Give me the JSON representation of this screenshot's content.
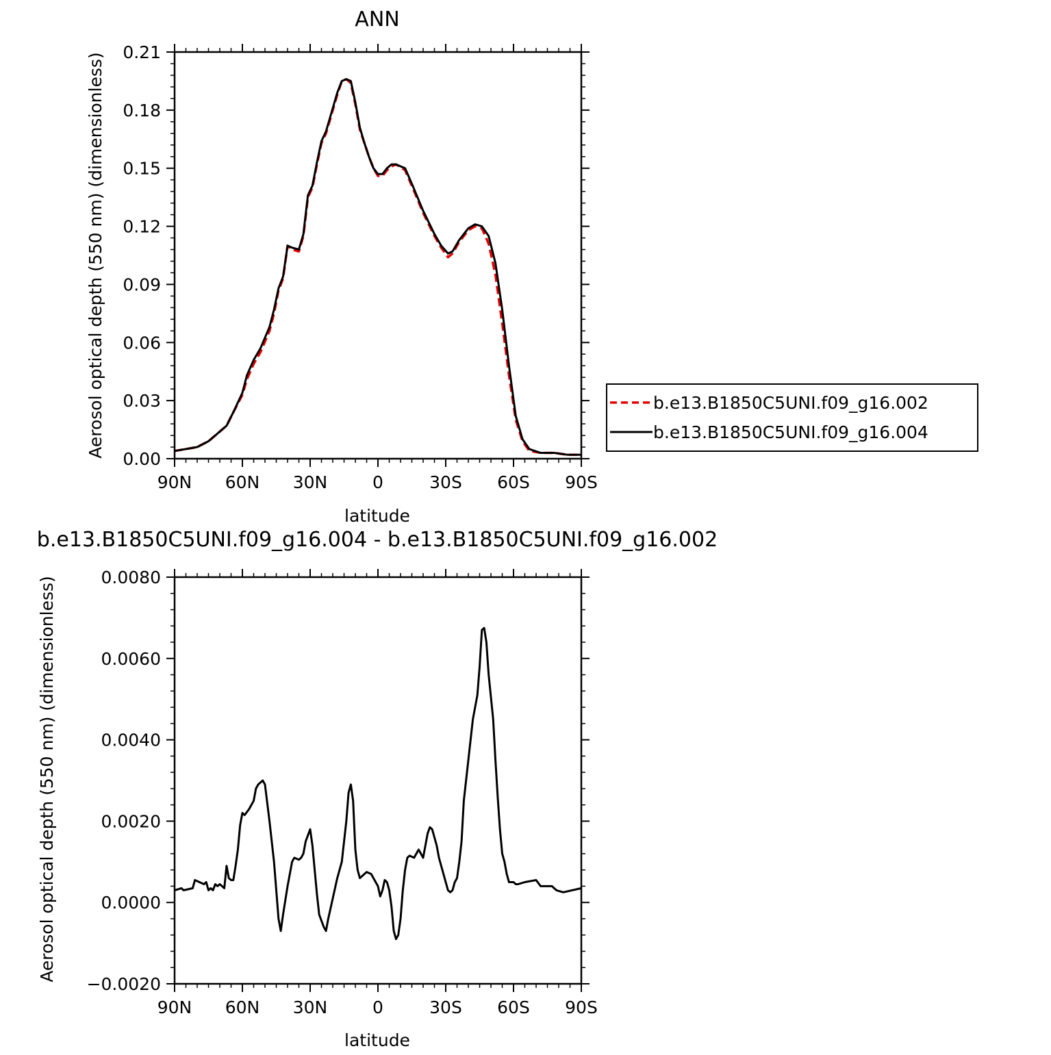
{
  "chart_data": [
    {
      "type": "line",
      "title": "ANN",
      "xlabel": "latitude",
      "ylabel": "Aerosol optical depth (550 nm) (dimensionless)",
      "xlim": [
        90,
        -90
      ],
      "ylim": [
        0,
        0.21
      ],
      "x_tick_values": [
        90,
        60,
        30,
        0,
        -30,
        -60,
        -90
      ],
      "x_tick_labels": [
        "90N",
        "60N",
        "30N",
        "0",
        "30S",
        "60S",
        "90S"
      ],
      "y_tick_values": [
        0,
        0.03,
        0.06,
        0.09,
        0.12,
        0.15,
        0.18,
        0.21
      ],
      "y_tick_labels": [
        "0.00",
        "0.03",
        "0.06",
        "0.09",
        "0.12",
        "0.15",
        "0.18",
        "0.21"
      ],
      "grid": false,
      "legend_position": "right",
      "series": [
        {
          "name": "b.e13.B1850C5UNI.f09_g16.002",
          "color": "#e60000",
          "dashed": true,
          "points": [
            [
              90,
              0.004
            ],
            [
              85,
              0.005
            ],
            [
              80,
              0.006
            ],
            [
              75,
              0.009
            ],
            [
              70,
              0.014
            ],
            [
              67,
              0.017
            ],
            [
              64,
              0.024
            ],
            [
              60,
              0.033
            ],
            [
              58,
              0.041
            ],
            [
              55,
              0.049
            ],
            [
              52,
              0.055
            ],
            [
              48,
              0.066
            ],
            [
              46,
              0.075
            ],
            [
              44,
              0.087
            ],
            [
              42,
              0.093
            ],
            [
              40,
              0.11
            ],
            [
              38,
              0.108
            ],
            [
              35,
              0.107
            ],
            [
              33,
              0.115
            ],
            [
              31,
              0.135
            ],
            [
              29,
              0.14
            ],
            [
              27,
              0.152
            ],
            [
              25,
              0.163
            ],
            [
              23,
              0.168
            ],
            [
              20,
              0.18
            ],
            [
              18,
              0.188
            ],
            [
              16,
              0.195
            ],
            [
              14,
              0.196
            ],
            [
              12,
              0.194
            ],
            [
              10,
              0.183
            ],
            [
              8,
              0.17
            ],
            [
              6,
              0.163
            ],
            [
              4,
              0.156
            ],
            [
              2,
              0.15
            ],
            [
              0,
              0.146
            ],
            [
              -2,
              0.146
            ],
            [
              -4,
              0.149
            ],
            [
              -6,
              0.151
            ],
            [
              -8,
              0.152
            ],
            [
              -12,
              0.149
            ],
            [
              -15,
              0.141
            ],
            [
              -20,
              0.127
            ],
            [
              -25,
              0.115
            ],
            [
              -28,
              0.109
            ],
            [
              -31,
              0.104
            ],
            [
              -33,
              0.106
            ],
            [
              -36,
              0.112
            ],
            [
              -40,
              0.118
            ],
            [
              -43,
              0.12
            ],
            [
              -46,
              0.119
            ],
            [
              -49,
              0.111
            ],
            [
              -52,
              0.095
            ],
            [
              -55,
              0.07
            ],
            [
              -58,
              0.043
            ],
            [
              -61,
              0.02
            ],
            [
              -64,
              0.009
            ],
            [
              -67,
              0.004
            ],
            [
              -72,
              0.003
            ],
            [
              -78,
              0.003
            ],
            [
              -84,
              0.002
            ],
            [
              -90,
              0.002
            ]
          ]
        },
        {
          "name": "b.e13.B1850C5UNI.f09_g16.004",
          "color": "#000000",
          "dashed": false,
          "points": [
            [
              90,
              0.004
            ],
            [
              85,
              0.005
            ],
            [
              80,
              0.006
            ],
            [
              75,
              0.009
            ],
            [
              70,
              0.014
            ],
            [
              67,
              0.017
            ],
            [
              64,
              0.024
            ],
            [
              60,
              0.034
            ],
            [
              58,
              0.043
            ],
            [
              55,
              0.051
            ],
            [
              52,
              0.057
            ],
            [
              48,
              0.068
            ],
            [
              46,
              0.077
            ],
            [
              44,
              0.088
            ],
            [
              42,
              0.094
            ],
            [
              40,
              0.11
            ],
            [
              38,
              0.109
            ],
            [
              35,
              0.108
            ],
            [
              33,
              0.116
            ],
            [
              31,
              0.136
            ],
            [
              29,
              0.141
            ],
            [
              27,
              0.153
            ],
            [
              25,
              0.164
            ],
            [
              23,
              0.169
            ],
            [
              20,
              0.181
            ],
            [
              18,
              0.189
            ],
            [
              16,
              0.195
            ],
            [
              14,
              0.196
            ],
            [
              12,
              0.195
            ],
            [
              10,
              0.184
            ],
            [
              8,
              0.171
            ],
            [
              6,
              0.163
            ],
            [
              4,
              0.156
            ],
            [
              2,
              0.15
            ],
            [
              0,
              0.147
            ],
            [
              -2,
              0.147
            ],
            [
              -4,
              0.15
            ],
            [
              -6,
              0.152
            ],
            [
              -8,
              0.152
            ],
            [
              -12,
              0.15
            ],
            [
              -15,
              0.142
            ],
            [
              -20,
              0.128
            ],
            [
              -25,
              0.116
            ],
            [
              -28,
              0.11
            ],
            [
              -31,
              0.106
            ],
            [
              -33,
              0.107
            ],
            [
              -36,
              0.113
            ],
            [
              -40,
              0.119
            ],
            [
              -43,
              0.121
            ],
            [
              -46,
              0.12
            ],
            [
              -49,
              0.115
            ],
            [
              -52,
              0.101
            ],
            [
              -55,
              0.077
            ],
            [
              -58,
              0.048
            ],
            [
              -61,
              0.022
            ],
            [
              -64,
              0.01
            ],
            [
              -67,
              0.005
            ],
            [
              -72,
              0.003
            ],
            [
              -78,
              0.003
            ],
            [
              -84,
              0.002
            ],
            [
              -90,
              0.002
            ]
          ]
        }
      ]
    },
    {
      "type": "line",
      "title": "b.e13.B1850C5UNI.f09_g16.004 - b.e13.B1850C5UNI.f09_g16.002",
      "xlabel": "latitude",
      "ylabel": "Aerosol optical depth (550 nm) (dimensionless)",
      "xlim": [
        90,
        -90
      ],
      "ylim": [
        -0.002,
        0.008
      ],
      "x_tick_values": [
        90,
        60,
        30,
        0,
        -30,
        -60,
        -90
      ],
      "x_tick_labels": [
        "90N",
        "60N",
        "30N",
        "0",
        "30S",
        "60S",
        "90S"
      ],
      "y_tick_values": [
        -0.002,
        0,
        0.002,
        0.004,
        0.006,
        0.008
      ],
      "y_tick_labels": [
        "−0.0020",
        "0.0000",
        "0.0020",
        "0.0040",
        "0.0060",
        "0.0080"
      ],
      "grid": false,
      "series": [
        {
          "color": "#000000",
          "dashed": false,
          "points": [
            [
              90,
              0.0003
            ],
            [
              87,
              0.00035
            ],
            [
              86,
              0.0003
            ],
            [
              82,
              0.00035
            ],
            [
              81,
              0.00055
            ],
            [
              79,
              0.0005
            ],
            [
              77,
              0.00045
            ],
            [
              76,
              0.0005
            ],
            [
              75,
              0.0003
            ],
            [
              74,
              0.00035
            ],
            [
              73,
              0.0003
            ],
            [
              72,
              0.00045
            ],
            [
              71,
              0.0004
            ],
            [
              70,
              0.00045
            ],
            [
              69,
              0.0004
            ],
            [
              68,
              0.00035
            ],
            [
              67,
              0.0009
            ],
            [
              66,
              0.0006
            ],
            [
              65,
              0.00055
            ],
            [
              64,
              0.00055
            ],
            [
              63,
              0.0009
            ],
            [
              62,
              0.0013
            ],
            [
              61,
              0.0019
            ],
            [
              60,
              0.0022
            ],
            [
              59,
              0.00215
            ],
            [
              57,
              0.0023
            ],
            [
              56,
              0.0024
            ],
            [
              55,
              0.0025
            ],
            [
              54,
              0.0028
            ],
            [
              53,
              0.0029
            ],
            [
              52,
              0.00295
            ],
            [
              51,
              0.003
            ],
            [
              50,
              0.0029
            ],
            [
              48,
              0.002
            ],
            [
              46,
              0.001
            ],
            [
              44,
              -0.0004
            ],
            [
              43,
              -0.0007
            ],
            [
              42,
              -0.0003
            ],
            [
              40,
              0.0004
            ],
            [
              38,
              0.001
            ],
            [
              37,
              0.0011
            ],
            [
              35,
              0.00105
            ],
            [
              34,
              0.0011
            ],
            [
              33,
              0.0012
            ],
            [
              32,
              0.0015
            ],
            [
              30,
              0.0018
            ],
            [
              29,
              0.0014
            ],
            [
              27,
              0.0002
            ],
            [
              26,
              -0.0003
            ],
            [
              24,
              -0.0006
            ],
            [
              23,
              -0.0007
            ],
            [
              22,
              -0.0004
            ],
            [
              20,
              0.0001
            ],
            [
              18,
              0.0006
            ],
            [
              16,
              0.001
            ],
            [
              14,
              0.002
            ],
            [
              13,
              0.0027
            ],
            [
              12,
              0.0029
            ],
            [
              11,
              0.0025
            ],
            [
              10,
              0.0013
            ],
            [
              9,
              0.0008
            ],
            [
              8,
              0.0006
            ],
            [
              6,
              0.0007
            ],
            [
              5,
              0.00075
            ],
            [
              3,
              0.0007
            ],
            [
              1,
              0.0005
            ],
            [
              0,
              0.0004
            ],
            [
              -1,
              0.00015
            ],
            [
              -2,
              0.0003
            ],
            [
              -3,
              0.00055
            ],
            [
              -4,
              0.0005
            ],
            [
              -5,
              0.0003
            ],
            [
              -6,
              -0.0001
            ],
            [
              -7,
              -0.0007
            ],
            [
              -8,
              -0.0009
            ],
            [
              -9,
              -0.0008
            ],
            [
              -10,
              -0.0004
            ],
            [
              -11,
              0.0003
            ],
            [
              -12,
              0.0008
            ],
            [
              -13,
              0.0011
            ],
            [
              -14,
              0.00115
            ],
            [
              -16,
              0.0011
            ],
            [
              -17,
              0.0012
            ],
            [
              -18,
              0.0013
            ],
            [
              -19,
              0.0012
            ],
            [
              -20,
              0.0011
            ],
            [
              -21,
              0.0014
            ],
            [
              -22,
              0.0017
            ],
            [
              -23,
              0.00185
            ],
            [
              -24,
              0.0018
            ],
            [
              -26,
              0.0014
            ],
            [
              -27,
              0.0011
            ],
            [
              -29,
              0.0007
            ],
            [
              -31,
              0.0003
            ],
            [
              -32,
              0.00025
            ],
            [
              -33,
              0.0003
            ],
            [
              -34,
              0.0005
            ],
            [
              -35,
              0.0006
            ],
            [
              -36,
              0.001
            ],
            [
              -37,
              0.0015
            ],
            [
              -38,
              0.0025
            ],
            [
              -40,
              0.0035
            ],
            [
              -42,
              0.0045
            ],
            [
              -44,
              0.0051
            ],
            [
              -45,
              0.0058
            ],
            [
              -46,
              0.0067
            ],
            [
              -47,
              0.00675
            ],
            [
              -48,
              0.0064
            ],
            [
              -49,
              0.0056
            ],
            [
              -51,
              0.0045
            ],
            [
              -52,
              0.0035
            ],
            [
              -53,
              0.0026
            ],
            [
              -54,
              0.0018
            ],
            [
              -55,
              0.0012
            ],
            [
              -56,
              0.001
            ],
            [
              -57,
              0.0007
            ],
            [
              -58,
              0.0005
            ],
            [
              -60,
              0.0005
            ],
            [
              -61,
              0.00045
            ],
            [
              -62,
              0.00045
            ],
            [
              -65,
              0.0005
            ],
            [
              -70,
              0.00055
            ],
            [
              -72,
              0.0004
            ],
            [
              -77,
              0.0004
            ],
            [
              -79,
              0.0003
            ],
            [
              -82,
              0.00025
            ],
            [
              -90,
              0.00035
            ]
          ]
        }
      ]
    }
  ]
}
